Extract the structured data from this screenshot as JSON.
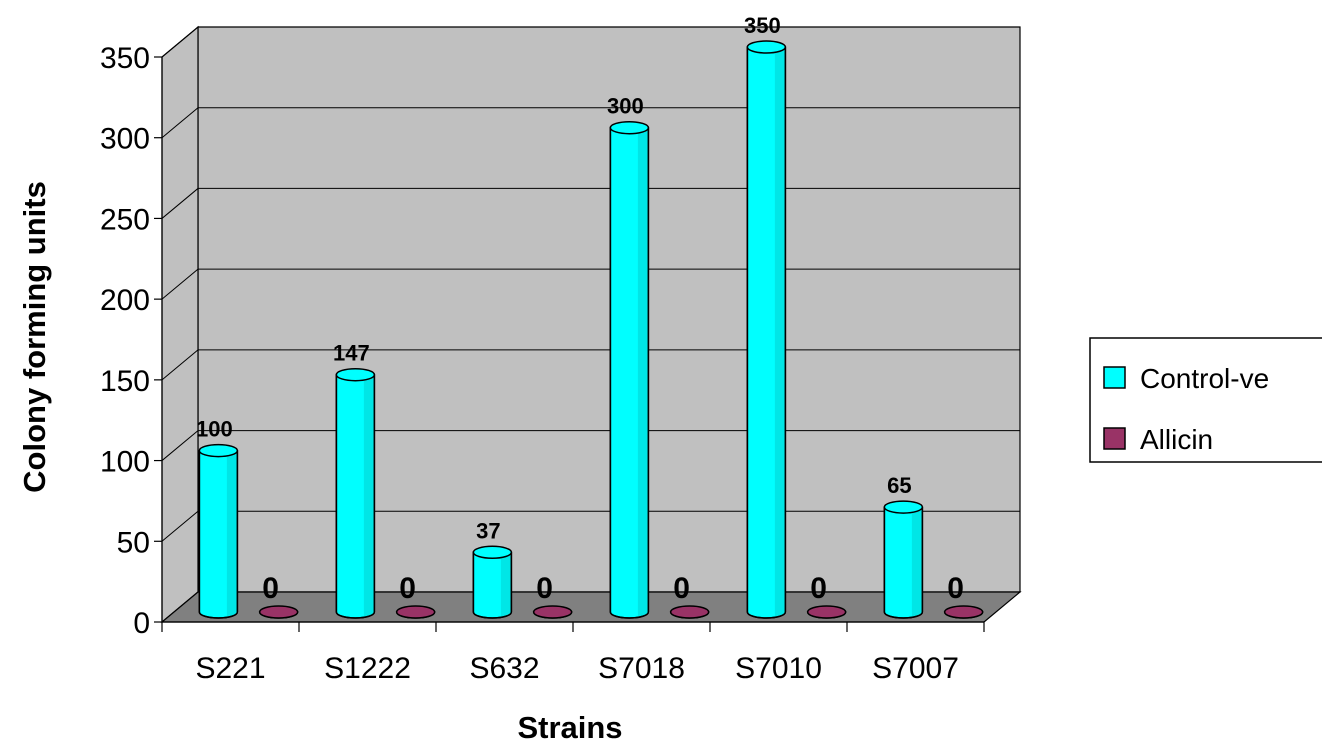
{
  "chart_data": {
    "type": "bar",
    "categories": [
      "S221",
      "S1222",
      "S632",
      "S7018",
      "S7010",
      "S7007"
    ],
    "series": [
      {
        "name": "Control-ve",
        "values": [
          100,
          147,
          37,
          300,
          350,
          65
        ],
        "color": "#00ffff"
      },
      {
        "name": "Allicin",
        "values": [
          0,
          0,
          0,
          0,
          0,
          0
        ],
        "color": "#993366"
      }
    ],
    "data_labels": {
      "Control-ve": [
        "100",
        "147",
        "37",
        "300",
        "350",
        "65"
      ],
      "Allicin": [
        "0",
        "0",
        "0",
        "0",
        "0",
        "0"
      ]
    },
    "ylim": [
      0,
      350
    ],
    "yticks": [
      "0",
      "50",
      "100",
      "150",
      "200",
      "250",
      "300",
      "350"
    ],
    "xlabel": "Strains",
    "ylabel": "Colony forming units",
    "legend_position": "right",
    "grid": true,
    "style": "3d-cylinder",
    "wall_color": "#c0c0c0",
    "floor_color": "#808080"
  }
}
